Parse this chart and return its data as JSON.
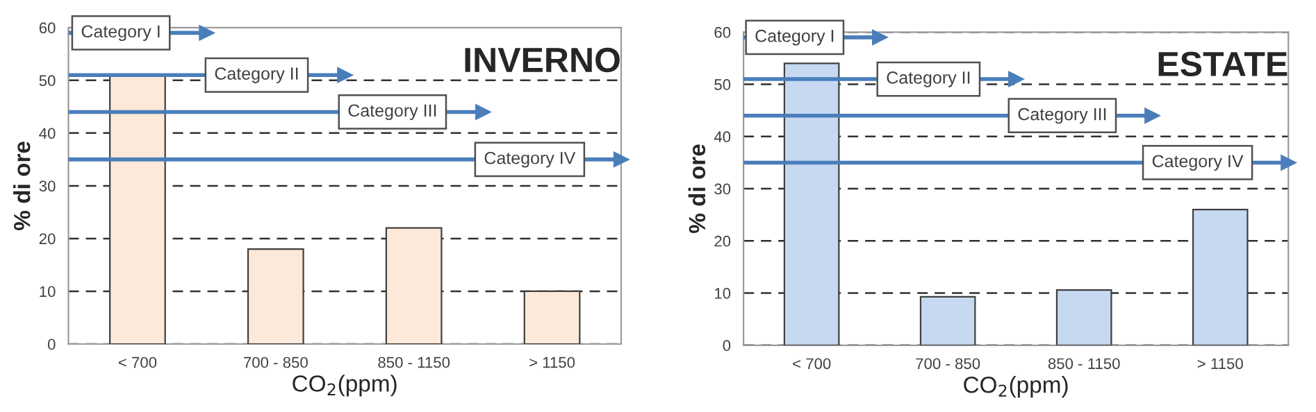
{
  "chart_data": [
    {
      "type": "bar",
      "title": "INVERNO",
      "xlabel": "CO$_{2}$(ppm)",
      "ylabel": "% di ore",
      "categories": [
        "< 700",
        "700 - 850",
        "850 - 1150",
        "> 1150"
      ],
      "values": [
        51,
        18,
        22,
        10
      ],
      "color": "#fde9d9",
      "ylim": [
        0,
        60
      ],
      "yticks": [
        0,
        10,
        20,
        30,
        40,
        50,
        60
      ],
      "grid": "y",
      "ref_lines": [
        {
          "axis": "y",
          "value": 59,
          "label": "Category I",
          "color": "#4a7ebb"
        },
        {
          "axis": "y",
          "value": 51,
          "label": "Category II",
          "color": "#4a7ebb"
        },
        {
          "axis": "y",
          "value": 44,
          "label": "Category III",
          "color": "#4a7ebb"
        },
        {
          "axis": "y",
          "value": 35,
          "label": "Category IV",
          "color": "#4a7ebb"
        }
      ]
    },
    {
      "type": "bar",
      "title": "ESTATE",
      "xlabel": "CO$_{2}$(ppm)",
      "ylabel": "% di ore",
      "categories": [
        "< 700",
        "700 - 850",
        "850 - 1150",
        "> 1150"
      ],
      "values": [
        54,
        9.3,
        10.6,
        26
      ],
      "color": "#c6d9f1",
      "ylim": [
        0,
        60
      ],
      "yticks": [
        0,
        10,
        20,
        30,
        40,
        50,
        60
      ],
      "grid": "y",
      "ref_lines": [
        {
          "axis": "y",
          "value": 59,
          "label": "Category I",
          "color": "#4a7ebb"
        },
        {
          "axis": "y",
          "value": 51,
          "label": "Category II",
          "color": "#4a7ebb"
        },
        {
          "axis": "y",
          "value": 44,
          "label": "Category III",
          "color": "#4a7ebb"
        },
        {
          "axis": "y",
          "value": 35,
          "label": "Category IV",
          "color": "#4a7ebb"
        }
      ]
    }
  ]
}
